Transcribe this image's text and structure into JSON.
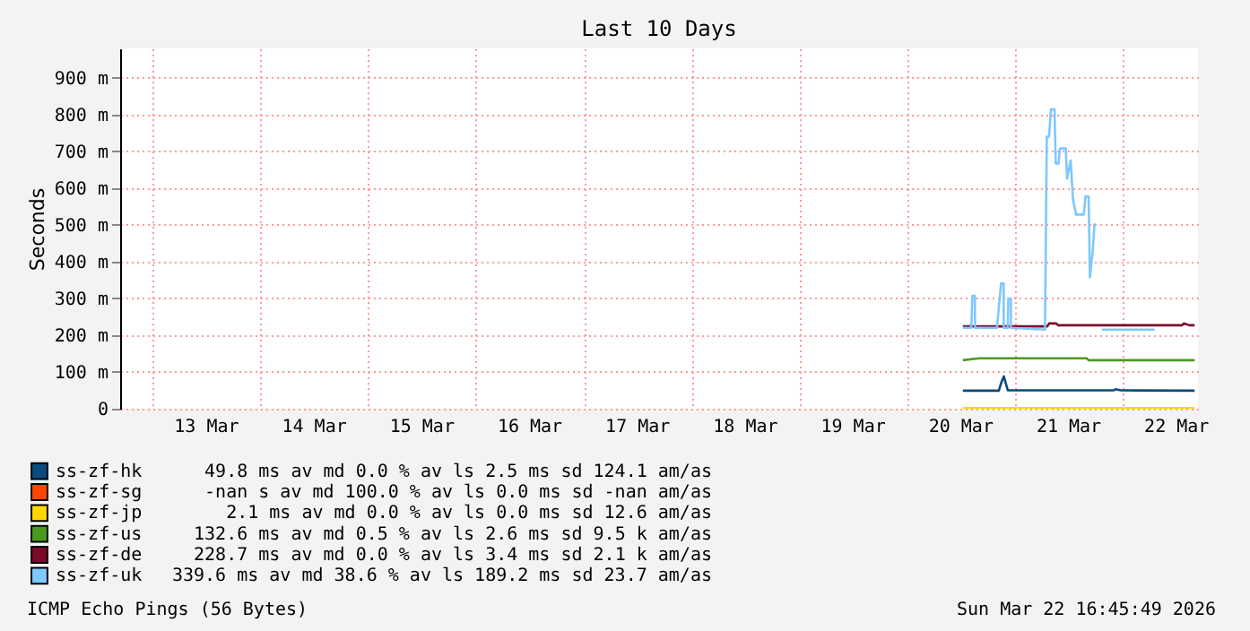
{
  "chart_data": {
    "type": "line",
    "title": "Last 10 Days",
    "ylabel": "Seconds",
    "xlim": [
      "2026-03-12T16:45",
      "2026-03-22T16:45"
    ],
    "xticks": [
      {
        "value": "2026-03-13T00:00",
        "label": null
      },
      {
        "value": "2026-03-13T12:00",
        "label": "13 Mar"
      },
      {
        "value": "2026-03-14T00:00",
        "label": null
      },
      {
        "value": "2026-03-14T12:00",
        "label": "14 Mar"
      },
      {
        "value": "2026-03-15T00:00",
        "label": null
      },
      {
        "value": "2026-03-15T12:00",
        "label": "15 Mar"
      },
      {
        "value": "2026-03-16T00:00",
        "label": null
      },
      {
        "value": "2026-03-16T12:00",
        "label": "16 Mar"
      },
      {
        "value": "2026-03-17T00:00",
        "label": null
      },
      {
        "value": "2026-03-17T12:00",
        "label": "17 Mar"
      },
      {
        "value": "2026-03-18T00:00",
        "label": null
      },
      {
        "value": "2026-03-18T12:00",
        "label": "18 Mar"
      },
      {
        "value": "2026-03-19T00:00",
        "label": null
      },
      {
        "value": "2026-03-19T12:00",
        "label": "19 Mar"
      },
      {
        "value": "2026-03-20T00:00",
        "label": null
      },
      {
        "value": "2026-03-20T12:00",
        "label": "20 Mar"
      },
      {
        "value": "2026-03-21T00:00",
        "label": null
      },
      {
        "value": "2026-03-21T12:00",
        "label": "21 Mar"
      },
      {
        "value": "2026-03-22T00:00",
        "label": null
      },
      {
        "value": "2026-03-22T12:00",
        "label": "22 Mar"
      }
    ],
    "ylim": [
      0,
      980
    ],
    "yticks": [
      {
        "value": 0,
        "label": "0"
      },
      {
        "value": 100,
        "label": "100 m"
      },
      {
        "value": 200,
        "label": "200 m"
      },
      {
        "value": 300,
        "label": "300 m"
      },
      {
        "value": 400,
        "label": "400 m"
      },
      {
        "value": 500,
        "label": "500 m"
      },
      {
        "value": 600,
        "label": "600 m"
      },
      {
        "value": 700,
        "label": "700 m"
      },
      {
        "value": 800,
        "label": "800 m"
      },
      {
        "value": 900,
        "label": "900 m"
      }
    ],
    "grid": true,
    "legend": "bottom",
    "marker": "none",
    "line_style": "solid",
    "series": [
      {
        "name": "ss-zf-hk",
        "color": "#0b4a7d",
        "x": [
          "2026-03-20T12:24",
          "2026-03-20T20:24",
          "2026-03-20T20:55",
          "2026-03-20T21:31",
          "2026-03-20T22:24",
          "2026-03-21T22:00",
          "2026-03-21T22:24",
          "2026-03-21T23:36",
          "2026-03-22T16:00"
        ],
        "values": [
          49,
          49,
          70,
          88,
          50,
          50,
          53,
          50,
          49
        ]
      },
      {
        "name": "ss-zf-sg",
        "color": "#ff4500"
      },
      {
        "name": "ss-zf-jp",
        "color": "#ffd700",
        "x": [
          "2026-03-20T12:24",
          "2026-03-22T16:00"
        ],
        "values": [
          2,
          2
        ]
      },
      {
        "name": "ss-zf-us",
        "color": "#4a9a1e",
        "x": [
          "2026-03-20T12:24",
          "2026-03-20T16:00",
          "2026-03-21T16:00",
          "2026-03-21T16:24",
          "2026-03-22T16:00"
        ],
        "values": [
          132,
          137,
          137,
          132,
          132
        ]
      },
      {
        "name": "ss-zf-de",
        "color": "#7a0a28",
        "x": [
          "2026-03-20T12:24",
          "2026-03-21T07:12",
          "2026-03-21T07:36",
          "2026-03-21T09:12",
          "2026-03-21T09:36",
          "2026-03-22T13:12",
          "2026-03-22T13:36",
          "2026-03-22T14:48",
          "2026-03-22T16:00"
        ],
        "values": [
          224,
          224,
          232,
          232,
          227,
          227,
          232,
          227,
          227
        ]
      },
      {
        "name": "ss-zf-uk",
        "color": "#7fc7ff",
        "x": [
          "2026-03-20T12:24",
          "2026-03-20T14:17",
          "2026-03-20T14:31",
          "2026-03-20T15:05",
          "2026-03-20T15:06",
          "2026-03-20T20:00",
          "2026-03-20T20:24",
          "2026-03-20T20:55",
          "2026-03-20T21:29",
          "2026-03-20T21:30",
          "2026-03-20T22:24",
          "2026-03-20T22:31",
          "2026-03-20T23:05",
          "2026-03-20T23:06",
          "2026-03-21T06:41",
          "2026-03-21T07:05",
          "2026-03-21T07:36",
          "2026-03-21T08:00",
          "2026-03-21T08:48",
          "2026-03-21T09:05",
          "2026-03-21T09:43",
          "2026-03-21T10:00",
          "2026-03-21T11:19",
          "2026-03-21T11:36",
          "2026-03-21T12:24",
          "2026-03-21T12:55",
          "2026-03-21T13:36",
          "2026-03-21T15:19",
          "2026-03-21T15:43",
          "2026-03-21T16:24",
          "2026-03-21T16:41",
          "2026-03-21T17:19",
          "2026-03-21T17:43",
          "2026-03-21T18:30",
          "2026-03-21T19:19",
          "2026-03-22T07:05"
        ],
        "values": [
          220,
          220,
          307,
          307,
          220,
          220,
          276,
          341,
          341,
          220,
          220,
          300,
          300,
          220,
          215,
          740,
          740,
          814,
          814,
          667,
          667,
          708,
          708,
          626,
          675,
          569,
          528,
          528,
          577,
          577,
          357,
          430,
          504,
          null,
          215,
          215
        ]
      }
    ],
    "annotations": [
      "49.8 ms av md 0.0 % av ls 2.5 ms sd 124.1 am/as",
      "-nan s av md 100.0 % av ls 0.0 ms sd -nan am/as",
      "2.1 ms av md 0.0 % av ls 0.0 ms sd 12.6 am/as",
      "132.6 ms av md 0.5 % av ls 2.6 ms sd 9.5 k am/as",
      "228.7 ms av md 0.0 % av ls 3.4 ms sd 2.1 k am/as",
      "339.6 ms av md 38.6 % av ls 189.2 ms sd 23.7 am/as",
      "ICMP Echo Pings (56 Bytes)",
      "Sun Mar 22 16:45:49 2026"
    ]
  }
}
